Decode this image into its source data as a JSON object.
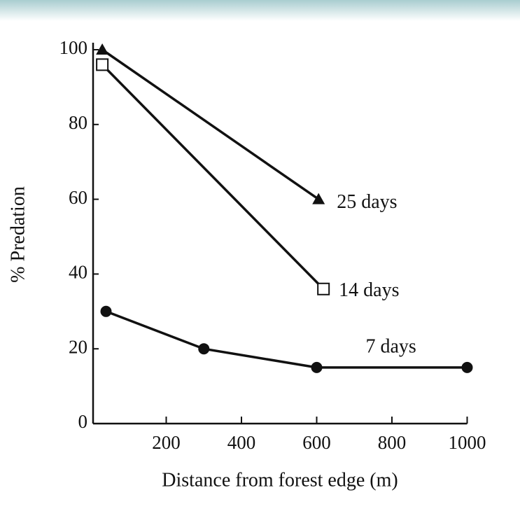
{
  "chart_data": {
    "type": "line",
    "x_label": "Distance from forest edge (m)",
    "y_label": "% Predation",
    "xlim": [
      0,
      1000
    ],
    "ylim": [
      0,
      100
    ],
    "xticks": [
      200,
      400,
      600,
      800,
      1000
    ],
    "yticks": [
      0,
      20,
      40,
      60,
      80,
      100
    ],
    "grid": false,
    "series": [
      {
        "name": "25 days",
        "color": "#111111",
        "marker": "triangle",
        "x": [
          30,
          605
        ],
        "values": [
          100,
          60
        ]
      },
      {
        "name": "14 days",
        "color": "#111111",
        "marker": "open-square",
        "x": [
          30,
          618
        ],
        "values": [
          96,
          36
        ]
      },
      {
        "name": "7 days",
        "color": "#111111",
        "marker": "circle",
        "x": [
          40,
          300,
          600,
          1000
        ],
        "values": [
          30,
          20,
          15,
          15
        ]
      }
    ]
  }
}
